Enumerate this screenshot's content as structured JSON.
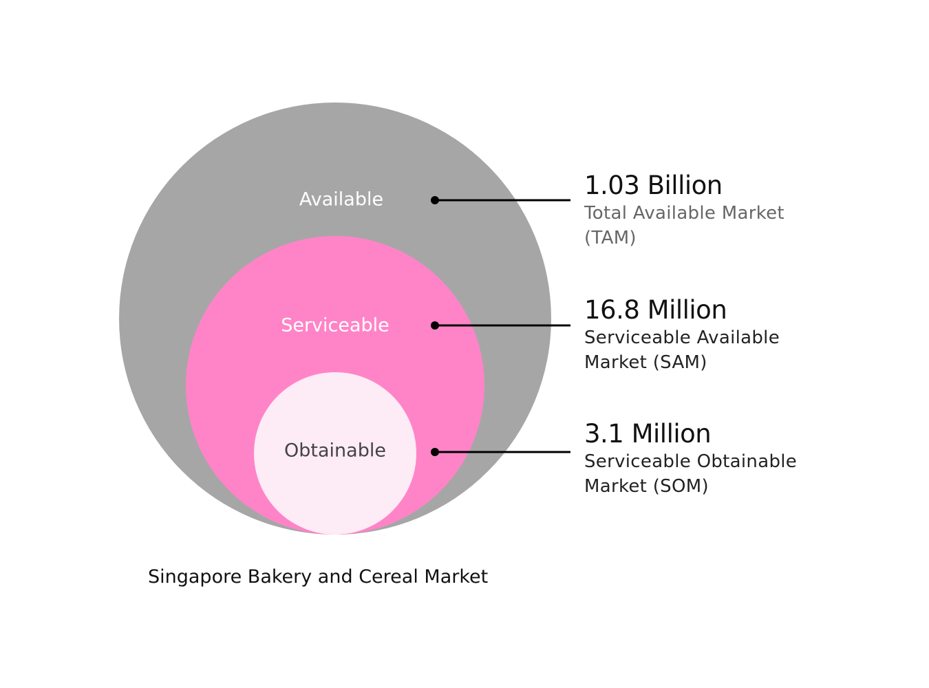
{
  "diagram": {
    "circles": [
      {
        "id": "tam",
        "label": "Available",
        "fill": "#a6a6a6",
        "label_color": "#ffffff"
      },
      {
        "id": "sam",
        "label": "Serviceable",
        "fill": "#ff84c7",
        "label_color": "#ffffff"
      },
      {
        "id": "som",
        "label": "Obtainable",
        "fill": "#fdebf5",
        "label_color": "#444444"
      }
    ],
    "markets": [
      {
        "id": "tam",
        "value": "1.03 Billion",
        "description": "Total Available Market (TAM)"
      },
      {
        "id": "sam",
        "value": "16.8 Million",
        "description": "Serviceable Available Market (SAM)"
      },
      {
        "id": "som",
        "value": "3.1 Million",
        "description": "Serviceable Obtainable Market (SOM)"
      }
    ],
    "caption": "Singapore Bakery and Cereal Market"
  }
}
